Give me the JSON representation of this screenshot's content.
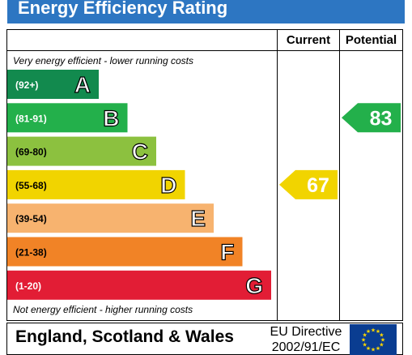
{
  "title": "Energy Efficiency Rating",
  "columns": {
    "current": "Current",
    "potential": "Potential"
  },
  "notes": {
    "top": "Very energy efficient - lower running costs",
    "bottom": "Not energy efficient - higher running costs"
  },
  "footer": {
    "region": "England, Scotland & Wales",
    "directive": "EU Directive 2002/91/EC"
  },
  "colors": {
    "title_bar": "#2d76c2",
    "bands": [
      "#128a4e",
      "#23b04b",
      "#8cc13f",
      "#f1d400",
      "#f7b36f",
      "#f18326",
      "#e21d35"
    ],
    "eu_flag": "#0a3d91",
    "eu_stars": "#ffd800"
  },
  "chart_data": {
    "type": "bar",
    "categories": [
      "A",
      "B",
      "C",
      "D",
      "E",
      "F",
      "G"
    ],
    "ranges": [
      "(92+)",
      "(81-91)",
      "(69-80)",
      "(55-68)",
      "(39-54)",
      "(21-38)",
      "(1-20)"
    ],
    "current": {
      "value": 67,
      "band": "D"
    },
    "potential": {
      "value": 83,
      "band": "B"
    }
  }
}
